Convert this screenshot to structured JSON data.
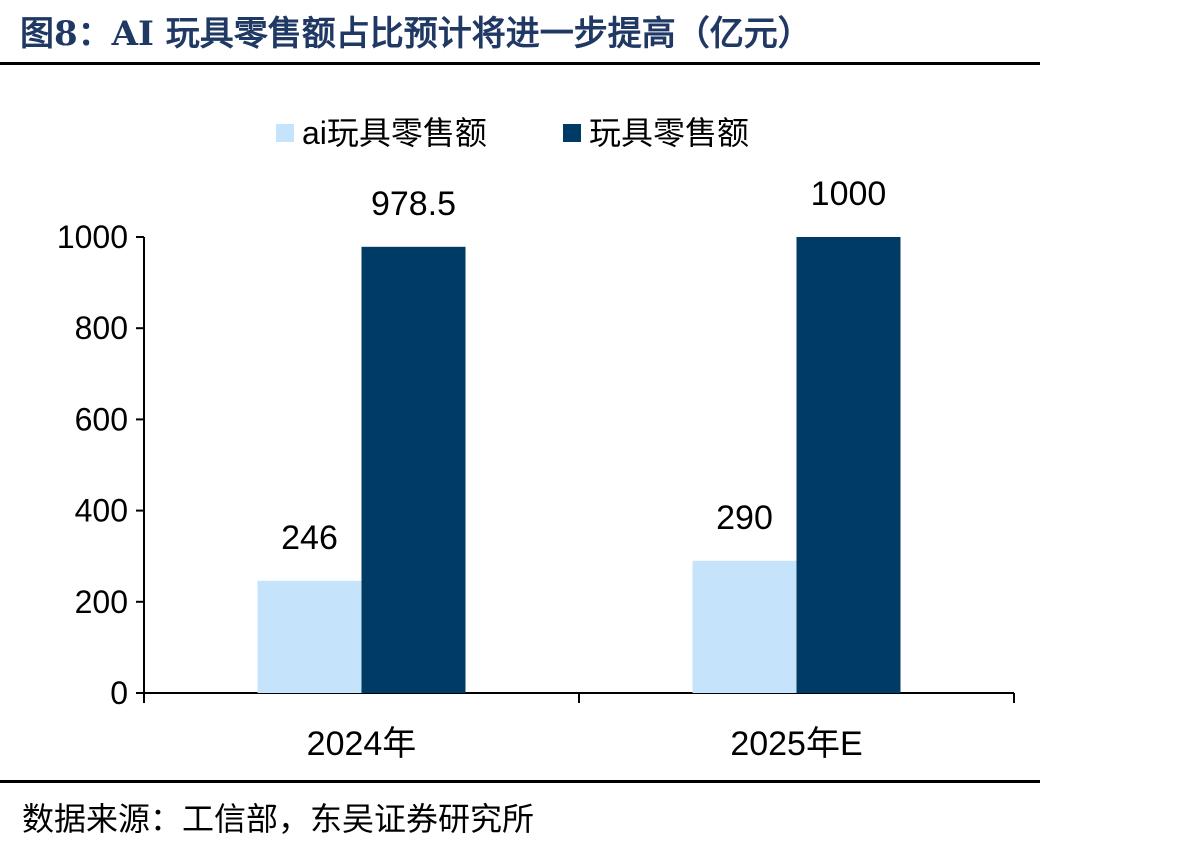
{
  "figure": {
    "title": "图8：AI 玩具零售额占比预计将进一步提高（亿元）",
    "source": "数据来源：工信部，东吴证券研究所"
  },
  "chart_data": {
    "type": "bar",
    "categories": [
      "2024年",
      "2025年E"
    ],
    "series": [
      {
        "name": "ai玩具零售额",
        "values": [
          246,
          290
        ],
        "labels": [
          "246",
          "290"
        ],
        "color": "#c5e3fb"
      },
      {
        "name": "玩具零售额",
        "values": [
          978.5,
          1000
        ],
        "labels": [
          "978.5",
          "1000"
        ],
        "color": "#003b66"
      }
    ],
    "ylim": [
      0,
      1000
    ],
    "yticks": [
      0,
      200,
      400,
      600,
      800,
      1000
    ],
    "grid": false,
    "legend": "top-center"
  }
}
